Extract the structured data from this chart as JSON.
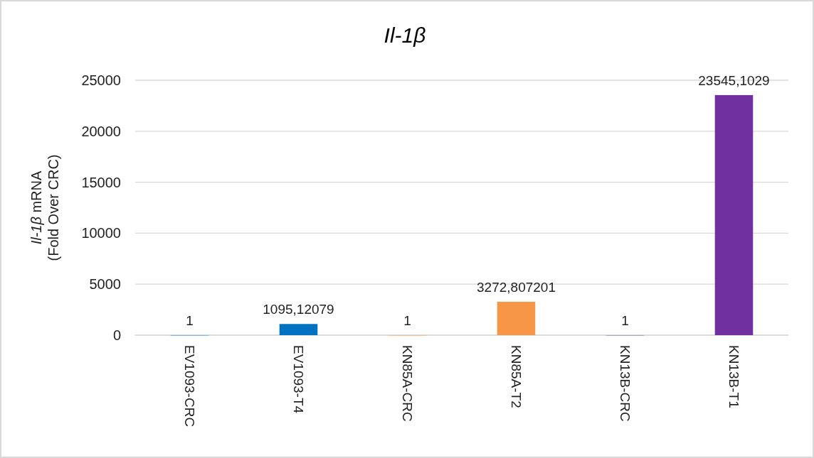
{
  "chart_data": {
    "type": "bar",
    "title": "Il-1β",
    "ylabel": "Il-1β mRNA\n(Fold Over CRC)",
    "categories": [
      "EV1093-CRC",
      "EV1093-T4",
      "KN85A-CRC",
      "KN85A-T2",
      "KN13B-CRC",
      "KN13B-T1"
    ],
    "values": [
      1,
      1095.12079,
      1,
      3272.807201,
      1,
      23545.1029
    ],
    "value_labels": [
      "1",
      "1095,12079",
      "1",
      "3272,807201",
      "1",
      "23545,1029"
    ],
    "colors": [
      "#8eb4e3",
      "#0070c0",
      "#fac090",
      "#f79646",
      "#b3a2c7",
      "#7030a0"
    ],
    "ylim": [
      0,
      25000
    ],
    "yticks": [
      0,
      5000,
      10000,
      15000,
      20000,
      25000
    ],
    "grid": "y"
  }
}
